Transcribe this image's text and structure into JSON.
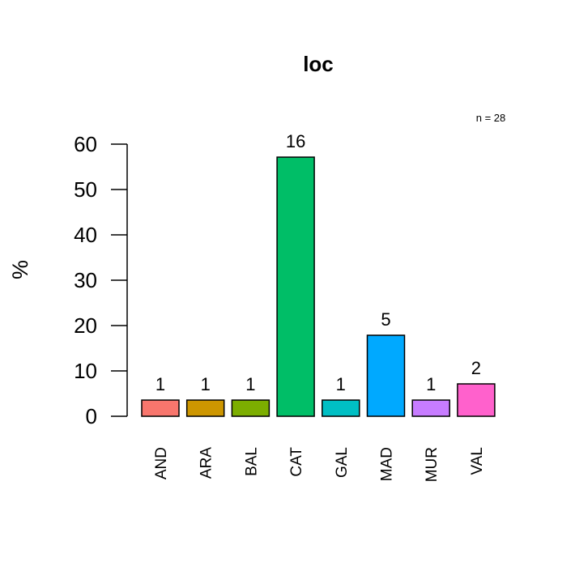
{
  "chart_data": {
    "type": "bar",
    "title": "loc",
    "ylabel": "%",
    "xlabel": "",
    "note": "n = 28",
    "categories": [
      "AND",
      "ARA",
      "BAL",
      "CAT",
      "GAL",
      "MAD",
      "MUR",
      "VAL"
    ],
    "counts": [
      1,
      1,
      1,
      16,
      1,
      5,
      1,
      2
    ],
    "values": [
      3.57,
      3.57,
      3.57,
      57.14,
      3.57,
      17.86,
      3.57,
      7.14
    ],
    "colors": [
      "#F8766D",
      "#CD9600",
      "#7CAE00",
      "#00BE67",
      "#00BFC4",
      "#00A9FF",
      "#C77CFF",
      "#FF61CC"
    ],
    "ylim": [
      0,
      60
    ],
    "yticks": [
      0,
      10,
      20,
      30,
      40,
      50,
      60
    ],
    "grid": false,
    "legend": "none"
  }
}
